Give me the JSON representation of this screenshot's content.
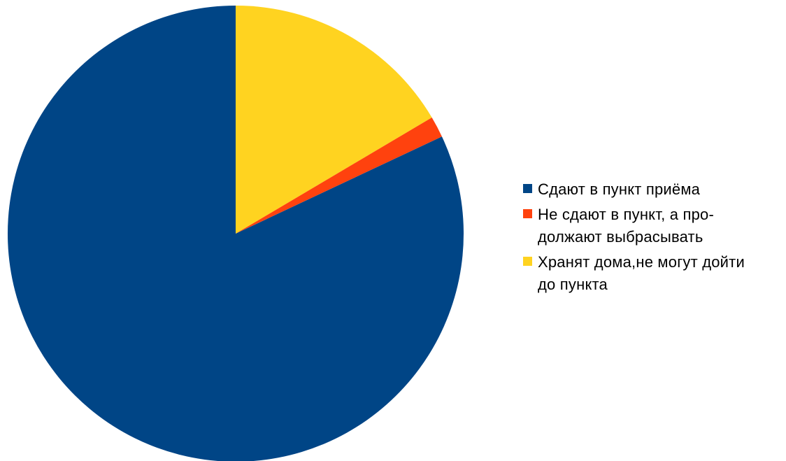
{
  "chart_data": {
    "type": "pie",
    "title": "",
    "start_angle_deg": 0,
    "direction": "clockwise",
    "categories": [
      "Хранят дома,не могут дойти до пункта",
      "Не сдают в пункт, а продолжают выбрасывать",
      "Сдают в пункт приёма"
    ],
    "values": [
      16.5,
      1.5,
      82.0
    ],
    "colors": [
      "#FFD320",
      "#FF420E",
      "#004586"
    ],
    "legend": {
      "placement": "right",
      "items": [
        {
          "label": "Сдают в пункт приёма",
          "color": "#004586"
        },
        {
          "label": "Не сдают в пункт, а про-\nдолжают выбрасывать",
          "color": "#FF420E"
        },
        {
          "label": "Хранят дома,не могут дойти\nдо пункта",
          "color": "#FFD320"
        }
      ]
    }
  }
}
